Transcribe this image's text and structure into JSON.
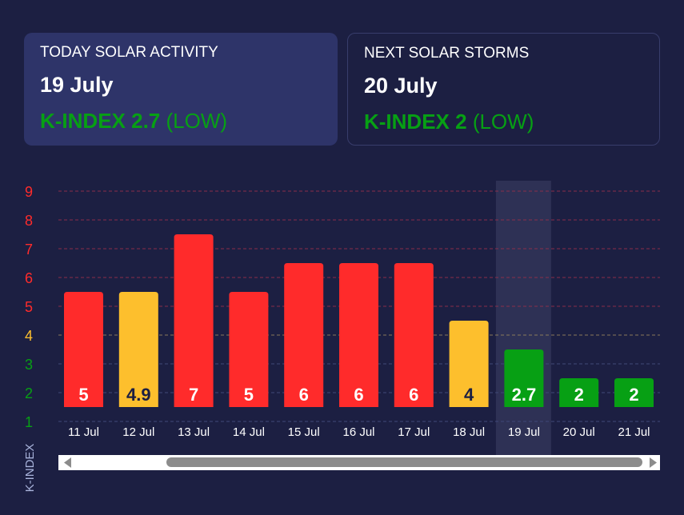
{
  "today": {
    "title": "TODAY SOLAR ACTIVITY",
    "date": "19 July",
    "k_label": "K-INDEX 2.7",
    "level": "(LOW)"
  },
  "next": {
    "title": "NEXT SOLAR STORMS",
    "date": "20 July",
    "k_label": "K-INDEX 2",
    "level": "(LOW)"
  },
  "colors": {
    "high": "#ff2b2b",
    "medium": "#fdbf2d",
    "low": "#07a014",
    "highlight": "#2e3155"
  },
  "chart_data": {
    "type": "bar",
    "ylabel": "K-INDEX",
    "ylim": [
      1,
      9
    ],
    "yticks": [
      "1",
      "2",
      "3",
      "4",
      "5",
      "6",
      "7",
      "8",
      "9"
    ],
    "categories": [
      "11 Jul",
      "12 Jul",
      "13 Jul",
      "14 Jul",
      "15 Jul",
      "16 Jul",
      "17 Jul",
      "18 Jul",
      "19 Jul",
      "20 Jul",
      "21 Jul"
    ],
    "values": [
      5,
      4.9,
      7,
      5,
      6,
      6,
      6,
      4,
      2.7,
      2,
      2
    ],
    "labels": [
      "5",
      "4.9",
      "7",
      "5",
      "6",
      "6",
      "6",
      "4",
      "2.7",
      "2",
      "2"
    ],
    "highlighted": "19 Jul",
    "grid": true
  }
}
